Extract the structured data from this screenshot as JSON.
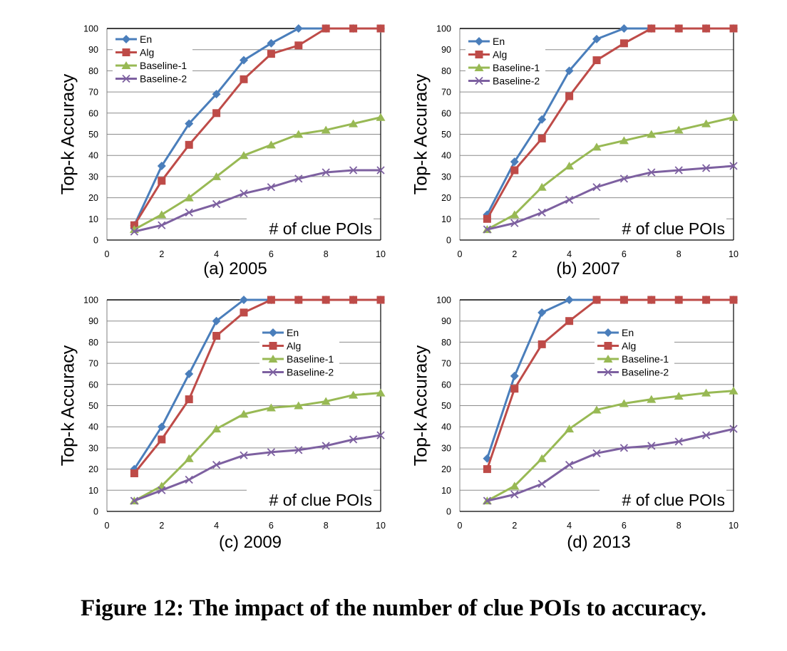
{
  "caption": "Figure 12: The impact of the number of clue POIs to accuracy.",
  "colors": {
    "En": "#4a7ebb",
    "Alg": "#be4b48",
    "Baseline-1": "#98b954",
    "Baseline-2": "#7d60a0"
  },
  "chart_data": [
    {
      "type": "line",
      "title": "(a) 2005",
      "xlabel": "# of clue POIs",
      "ylabel": "Top-k Accuracy",
      "xlim": [
        0,
        10
      ],
      "ylim": [
        0,
        100
      ],
      "xticks": [
        0,
        2,
        4,
        6,
        8,
        10
      ],
      "yticks": [
        0,
        10,
        20,
        30,
        40,
        50,
        60,
        70,
        80,
        90,
        100
      ],
      "grid": "horizontal",
      "legend_position": "top-left",
      "x": [
        1,
        2,
        3,
        4,
        5,
        6,
        7,
        8,
        9,
        10
      ],
      "series": [
        {
          "name": "En",
          "marker": "diamond",
          "values": [
            7,
            35,
            55,
            69,
            85,
            93,
            100,
            100,
            100,
            100
          ]
        },
        {
          "name": "Alg",
          "marker": "square",
          "values": [
            7,
            28,
            45,
            60,
            76,
            88,
            92,
            100,
            100,
            100
          ]
        },
        {
          "name": "Baseline-1",
          "marker": "triangle",
          "values": [
            5,
            12,
            20,
            30,
            40,
            45,
            50,
            52,
            55,
            58
          ]
        },
        {
          "name": "Baseline-2",
          "marker": "x",
          "values": [
            4,
            7,
            13,
            17,
            22,
            25,
            29,
            32,
            33,
            33
          ]
        }
      ]
    },
    {
      "type": "line",
      "title": "(b) 2007",
      "xlabel": "# of clue POIs",
      "ylabel": "Top-k Accuracy",
      "xlim": [
        0,
        10
      ],
      "ylim": [
        0,
        100
      ],
      "xticks": [
        0,
        2,
        4,
        6,
        8,
        10
      ],
      "yticks": [
        0,
        10,
        20,
        30,
        40,
        50,
        60,
        70,
        80,
        90,
        100
      ],
      "grid": "horizontal",
      "legend_position": "top-left",
      "x": [
        1,
        2,
        3,
        4,
        5,
        6,
        7,
        8,
        9,
        10
      ],
      "series": [
        {
          "name": "En",
          "marker": "diamond",
          "values": [
            12,
            37,
            57,
            80,
            95,
            100,
            100,
            100,
            100,
            100
          ]
        },
        {
          "name": "Alg",
          "marker": "square",
          "values": [
            10,
            33,
            48,
            68,
            85,
            93,
            100,
            100,
            100,
            100
          ]
        },
        {
          "name": "Baseline-1",
          "marker": "triangle",
          "values": [
            5,
            12,
            25,
            35,
            44,
            47,
            50,
            52,
            55,
            58
          ]
        },
        {
          "name": "Baseline-2",
          "marker": "x",
          "values": [
            5,
            8,
            13,
            19,
            25,
            29,
            32,
            33,
            34,
            35
          ]
        }
      ]
    },
    {
      "type": "line",
      "title": "(c) 2009",
      "xlabel": "# of clue POIs",
      "ylabel": "Top-k Accuracy",
      "xlim": [
        0,
        10
      ],
      "ylim": [
        0,
        100
      ],
      "xticks": [
        0,
        2,
        4,
        6,
        8,
        10
      ],
      "yticks": [
        0,
        10,
        20,
        30,
        40,
        50,
        60,
        70,
        80,
        90,
        100
      ],
      "grid": "horizontal",
      "legend_position": "center-right",
      "x": [
        1,
        2,
        3,
        4,
        5,
        6,
        7,
        8,
        9,
        10
      ],
      "series": [
        {
          "name": "En",
          "marker": "diamond",
          "values": [
            20,
            40,
            65,
            90,
            100,
            100,
            100,
            100,
            100,
            100
          ]
        },
        {
          "name": "Alg",
          "marker": "square",
          "values": [
            18,
            34,
            53,
            83,
            94,
            100,
            100,
            100,
            100,
            100
          ]
        },
        {
          "name": "Baseline-1",
          "marker": "triangle",
          "values": [
            5,
            12,
            25,
            39,
            46,
            49,
            50,
            52,
            55,
            56
          ]
        },
        {
          "name": "Baseline-2",
          "marker": "x",
          "values": [
            5,
            10,
            15,
            22,
            26.5,
            28,
            29,
            31,
            34,
            36
          ]
        }
      ]
    },
    {
      "type": "line",
      "title": "(d) 2013",
      "xlabel": "# of clue POIs",
      "ylabel": "Top-k Accuracy",
      "xlim": [
        0,
        10
      ],
      "ylim": [
        0,
        100
      ],
      "xticks": [
        0,
        2,
        4,
        6,
        8,
        10
      ],
      "yticks": [
        0,
        10,
        20,
        30,
        40,
        50,
        60,
        70,
        80,
        90,
        100
      ],
      "grid": "horizontal",
      "legend_position": "center-right",
      "x": [
        1,
        2,
        3,
        4,
        5,
        6,
        7,
        8,
        9,
        10
      ],
      "series": [
        {
          "name": "En",
          "marker": "diamond",
          "values": [
            25,
            64,
            94,
            100,
            100,
            100,
            100,
            100,
            100,
            100
          ]
        },
        {
          "name": "Alg",
          "marker": "square",
          "values": [
            20,
            58,
            79,
            90,
            100,
            100,
            100,
            100,
            100,
            100
          ]
        },
        {
          "name": "Baseline-1",
          "marker": "triangle",
          "values": [
            5,
            12,
            25,
            39,
            48,
            51,
            53,
            54.5,
            56,
            57
          ]
        },
        {
          "name": "Baseline-2",
          "marker": "x",
          "values": [
            5,
            8,
            13,
            22,
            27.5,
            30,
            31,
            33,
            36,
            39
          ]
        }
      ]
    }
  ]
}
